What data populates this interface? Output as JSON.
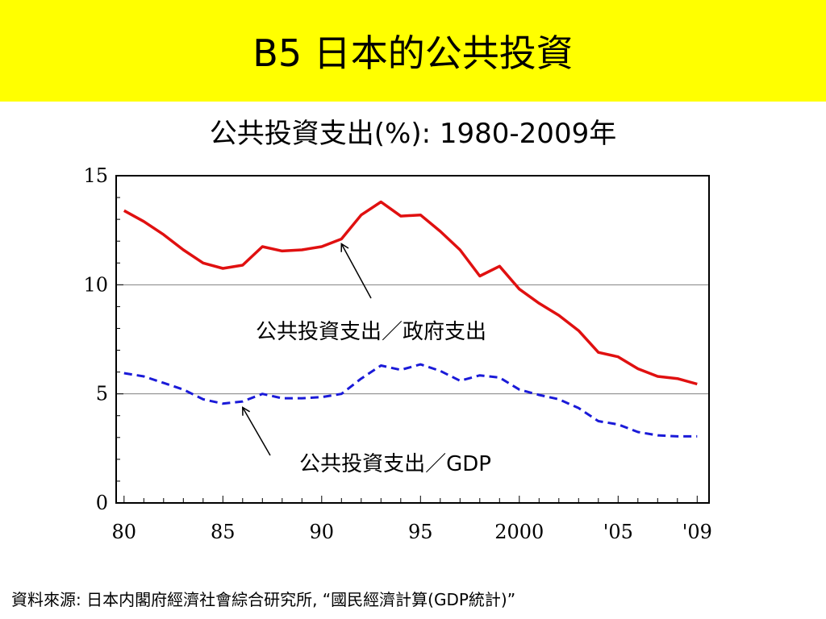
{
  "slide": {
    "title": "B5  日本的公共投資"
  },
  "chart_data": {
    "type": "line",
    "title": "公共投資支出(%):  1980-2009年",
    "xlabel": "",
    "ylabel": "",
    "x": [
      1980,
      1981,
      1982,
      1983,
      1984,
      1985,
      1986,
      1987,
      1988,
      1989,
      1990,
      1991,
      1992,
      1993,
      1994,
      1995,
      1996,
      1997,
      1998,
      1999,
      2000,
      2001,
      2002,
      2003,
      2004,
      2005,
      2006,
      2007,
      2008,
      2009
    ],
    "xlim": [
      1979.6,
      2009.6
    ],
    "ylim": [
      0,
      15
    ],
    "x_tick_values": [
      1980,
      1985,
      1990,
      1995,
      2000,
      2005,
      2009
    ],
    "x_tick_labels": [
      "80",
      "85",
      "90",
      "95",
      "2000",
      "'05",
      "'09"
    ],
    "y_tick_values": [
      0,
      5,
      10,
      15
    ],
    "y_tick_labels": [
      "0",
      "5",
      "10",
      "15"
    ],
    "gridlines_y": [
      5,
      10
    ],
    "series": [
      {
        "name": "公共投資支出／政府支出",
        "color": "#e01010",
        "style": "solid",
        "values": [
          13.4,
          12.9,
          12.3,
          11.6,
          11.0,
          10.75,
          10.9,
          11.75,
          11.55,
          11.6,
          11.75,
          12.1,
          13.2,
          13.8,
          13.15,
          13.2,
          12.45,
          11.6,
          10.4,
          10.85,
          9.8,
          9.15,
          8.6,
          7.9,
          6.9,
          6.7,
          6.15,
          5.8,
          5.7,
          5.45
        ]
      },
      {
        "name": "公共投資支出／GDP",
        "color": "#1a1ad8",
        "style": "dashed",
        "values": [
          5.95,
          5.8,
          5.5,
          5.2,
          4.75,
          4.55,
          4.65,
          5.0,
          4.8,
          4.8,
          4.85,
          5.0,
          5.7,
          6.3,
          6.1,
          6.35,
          6.05,
          5.6,
          5.85,
          5.75,
          5.2,
          4.95,
          4.75,
          4.35,
          3.75,
          3.6,
          3.25,
          3.1,
          3.05,
          3.05
        ]
      }
    ],
    "annotations": [
      {
        "text": "公共投資支出／政府支出",
        "series": 0,
        "points_to_x": 1991,
        "points_to_y": 12.1
      },
      {
        "text": "公共投資支出／GDP",
        "series": 1,
        "points_to_x": 1986,
        "points_to_y": 4.6
      }
    ]
  },
  "source": {
    "text": "資料來源:  日本内閣府經濟社會綜合研究所, “國民經濟計算(GDP統計)”"
  }
}
